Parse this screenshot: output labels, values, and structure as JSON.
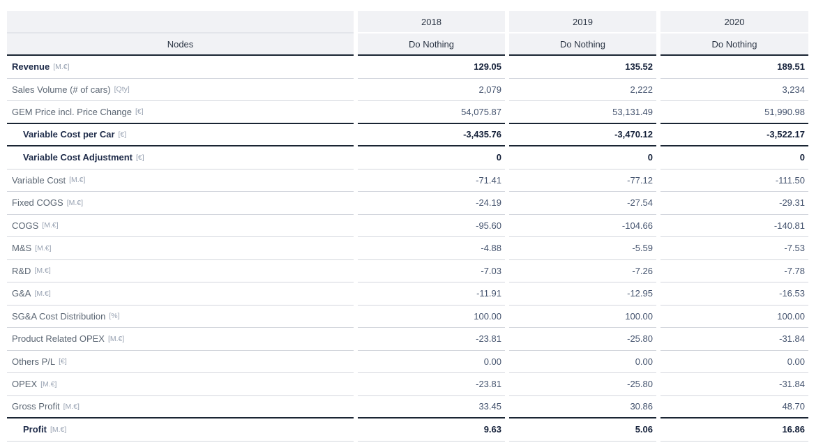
{
  "table": {
    "header": {
      "nodes_label": "Nodes",
      "columns": [
        {
          "year": "2018",
          "scenario": "Do Nothing"
        },
        {
          "year": "2019",
          "scenario": "Do Nothing"
        },
        {
          "year": "2020",
          "scenario": "Do Nothing"
        }
      ]
    },
    "rows": [
      {
        "label": "Revenue",
        "unit": "[M.€]",
        "emphasis": true,
        "indent": false,
        "rule_below": "thin",
        "values": [
          "129.05",
          "135.52",
          "189.51"
        ]
      },
      {
        "label": "Sales Volume (# of cars)",
        "unit": "[Qty]",
        "emphasis": false,
        "indent": false,
        "rule_below": "thin",
        "values": [
          "2,079",
          "2,222",
          "3,234"
        ]
      },
      {
        "label": "GEM Price incl. Price Change",
        "unit": "[€]",
        "emphasis": false,
        "indent": false,
        "rule_below": "thick",
        "values": [
          "54,075.87",
          "53,131.49",
          "51,990.98"
        ]
      },
      {
        "label": "Variable Cost per Car",
        "unit": "[€]",
        "emphasis": true,
        "indent": true,
        "rule_below": "thick",
        "values": [
          "-3,435.76",
          "-3,470.12",
          "-3,522.17"
        ]
      },
      {
        "label": "Variable Cost Adjustment",
        "unit": "[€]",
        "emphasis": true,
        "indent": true,
        "rule_below": "thin",
        "values": [
          "0",
          "0",
          "0"
        ]
      },
      {
        "label": "Variable Cost",
        "unit": "[M.€]",
        "emphasis": false,
        "indent": false,
        "rule_below": "thin",
        "values": [
          "-71.41",
          "-77.12",
          "-111.50"
        ]
      },
      {
        "label": "Fixed COGS",
        "unit": "[M.€]",
        "emphasis": false,
        "indent": false,
        "rule_below": "thin",
        "values": [
          "-24.19",
          "-27.54",
          "-29.31"
        ]
      },
      {
        "label": "COGS",
        "unit": "[M.€]",
        "emphasis": false,
        "indent": false,
        "rule_below": "thin",
        "values": [
          "-95.60",
          "-104.66",
          "-140.81"
        ]
      },
      {
        "label": "M&S",
        "unit": "[M.€]",
        "emphasis": false,
        "indent": false,
        "rule_below": "thin",
        "values": [
          "-4.88",
          "-5.59",
          "-7.53"
        ]
      },
      {
        "label": "R&D",
        "unit": "[M.€]",
        "emphasis": false,
        "indent": false,
        "rule_below": "thin",
        "values": [
          "-7.03",
          "-7.26",
          "-7.78"
        ]
      },
      {
        "label": "G&A",
        "unit": "[M.€]",
        "emphasis": false,
        "indent": false,
        "rule_below": "thin",
        "values": [
          "-11.91",
          "-12.95",
          "-16.53"
        ]
      },
      {
        "label": "SG&A Cost Distribution",
        "unit": "[%]",
        "emphasis": false,
        "indent": false,
        "rule_below": "thin",
        "values": [
          "100.00",
          "100.00",
          "100.00"
        ]
      },
      {
        "label": "Product Related OPEX",
        "unit": "[M.€]",
        "emphasis": false,
        "indent": false,
        "rule_below": "thin",
        "values": [
          "-23.81",
          "-25.80",
          "-31.84"
        ]
      },
      {
        "label": "Others P/L",
        "unit": "[€]",
        "emphasis": false,
        "indent": false,
        "rule_below": "thin",
        "values": [
          "0.00",
          "0.00",
          "0.00"
        ]
      },
      {
        "label": "OPEX",
        "unit": "[M.€]",
        "emphasis": false,
        "indent": false,
        "rule_below": "thin",
        "values": [
          "-23.81",
          "-25.80",
          "-31.84"
        ]
      },
      {
        "label": "Gross Profit",
        "unit": "[M.€]",
        "emphasis": false,
        "indent": false,
        "rule_below": "thick",
        "values": [
          "33.45",
          "30.86",
          "48.70"
        ]
      },
      {
        "label": "Profit",
        "unit": "[M.€]",
        "emphasis": true,
        "indent": true,
        "rule_below": "thin",
        "values": [
          "9.63",
          "5.06",
          "16.86"
        ]
      }
    ]
  },
  "colors": {
    "header_bg": "#f1f2f5",
    "rule_thick": "#1a2533",
    "rule_thin": "#d3d6dd",
    "label_emphasis": "#1e2b49",
    "label_regular": "#5b6673",
    "unit_tag": "#98a2b2",
    "value_regular": "#44536e",
    "value_emphasis": "#15213a",
    "header_text": "#2b3544"
  }
}
